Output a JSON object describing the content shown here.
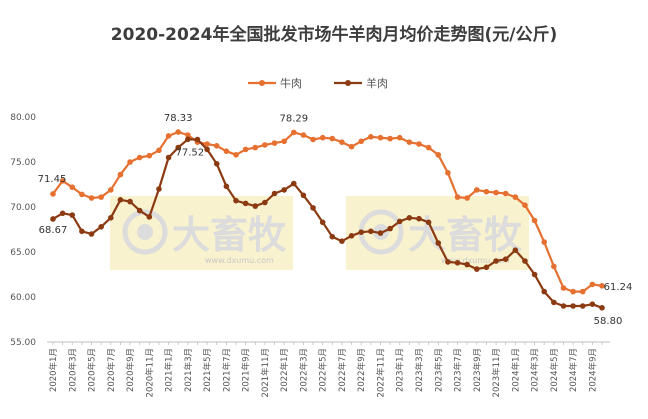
{
  "chart_data": {
    "type": "line",
    "title": "2020-2024年全国批发市场牛羊肉月均价走势图(元/公斤)",
    "xlabel": "",
    "ylabel": "",
    "ylim": [
      55,
      80
    ],
    "yticks": [
      "55.00",
      "60.00",
      "65.00",
      "70.00",
      "75.00",
      "80.00"
    ],
    "grid": false,
    "legend_position": "top-center",
    "x": [
      "2020年1月",
      "2020年2月",
      "2020年3月",
      "2020年4月",
      "2020年5月",
      "2020年6月",
      "2020年7月",
      "2020年8月",
      "2020年9月",
      "2020年10月",
      "2020年11月",
      "2020年12月",
      "2021年1月",
      "2021年2月",
      "2021年3月",
      "2021年4月",
      "2021年5月",
      "2021年6月",
      "2021年7月",
      "2021年8月",
      "2021年9月",
      "2021年10月",
      "2021年11月",
      "2021年12月",
      "2022年1月",
      "2022年2月",
      "2022年3月",
      "2022年4月",
      "2022年5月",
      "2022年6月",
      "2022年7月",
      "2022年8月",
      "2022年9月",
      "2022年10月",
      "2022年11月",
      "2022年12月",
      "2023年1月",
      "2023年2月",
      "2023年3月",
      "2023年4月",
      "2023年5月",
      "2023年6月",
      "2023年7月",
      "2023年8月",
      "2023年9月",
      "2023年10月",
      "2023年11月",
      "2023年12月",
      "2024年1月",
      "2024年2月",
      "2024年3月",
      "2024年4月",
      "2024年5月",
      "2024年6月",
      "2024年7月",
      "2024年8月",
      "2024年9月",
      "2024年10月"
    ],
    "xtick_labels": [
      "2020年1月",
      "2020年3月",
      "2020年5月",
      "2020年7月",
      "2020年9月",
      "2020年11月",
      "2021年1月",
      "2021年3月",
      "2021年5月",
      "2021年7月",
      "2021年9月",
      "2021年11月",
      "2022年1月",
      "2022年3月",
      "2022年5月",
      "2022年7月",
      "2022年9月",
      "2022年11月",
      "2023年1月",
      "2023年3月",
      "2023年5月",
      "2023年7月",
      "2023年9月",
      "2023年11月",
      "2024年1月",
      "2024年3月",
      "2024年5月",
      "2024年7月",
      "2024年9月"
    ],
    "series": [
      {
        "name": "牛肉",
        "color": "#e5702f",
        "values": [
          71.45,
          72.9,
          72.2,
          71.4,
          71.0,
          71.1,
          71.9,
          73.6,
          75.0,
          75.5,
          75.7,
          76.3,
          77.9,
          78.33,
          78.0,
          77.2,
          77.0,
          76.8,
          76.2,
          75.8,
          76.4,
          76.6,
          76.9,
          77.1,
          77.3,
          78.29,
          78.0,
          77.5,
          77.7,
          77.6,
          77.2,
          76.7,
          77.3,
          77.8,
          77.7,
          77.6,
          77.7,
          77.2,
          77.0,
          76.6,
          75.8,
          73.8,
          71.1,
          71.0,
          71.9,
          71.7,
          71.6,
          71.5,
          71.1,
          70.2,
          68.5,
          66.1,
          63.4,
          61.0,
          60.6,
          60.6,
          61.4,
          61.24
        ]
      },
      {
        "name": "羊肉",
        "color": "#8b3a12",
        "values": [
          68.67,
          69.3,
          69.1,
          67.3,
          67.0,
          67.8,
          68.8,
          70.8,
          70.6,
          69.6,
          68.9,
          72.0,
          75.5,
          76.6,
          77.52,
          77.5,
          76.4,
          74.8,
          72.3,
          70.7,
          70.4,
          70.1,
          70.5,
          71.5,
          71.9,
          72.6,
          71.3,
          69.9,
          68.3,
          66.7,
          66.2,
          66.8,
          67.2,
          67.3,
          67.1,
          67.6,
          68.4,
          68.8,
          68.7,
          68.3,
          66.0,
          63.9,
          63.8,
          63.6,
          63.1,
          63.3,
          64.0,
          64.2,
          65.2,
          64.0,
          62.5,
          60.6,
          59.4,
          59.0,
          59.0,
          59.0,
          59.2,
          58.8
        ]
      }
    ],
    "annotations": [
      {
        "series": "牛肉",
        "x": "2020年1月",
        "text": "71.45"
      },
      {
        "series": "羊肉",
        "x": "2020年1月",
        "text": "68.67"
      },
      {
        "series": "牛肉",
        "x": "2021年2月",
        "text": "78.33"
      },
      {
        "series": "羊肉",
        "x": "2021年3月",
        "text": "77.52"
      },
      {
        "series": "牛肉",
        "x": "2022年2月",
        "text": "78.29"
      },
      {
        "series": "牛肉",
        "x": "2024年10月",
        "text": "61.24"
      },
      {
        "series": "羊肉",
        "x": "2024年10月",
        "text": "58.80"
      }
    ]
  },
  "watermark": {
    "brand": "大畜牧",
    "url": "www.dxumu.com"
  }
}
